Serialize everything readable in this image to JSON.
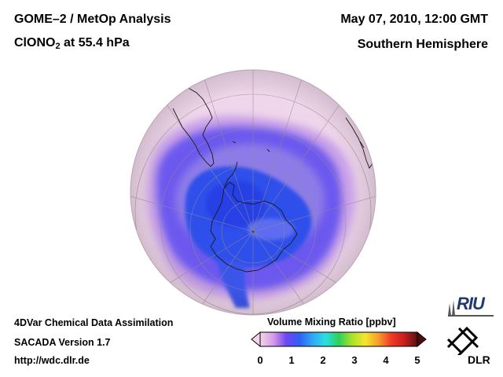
{
  "header": {
    "title_main": "GOME–2 / MetOp Analysis",
    "species": "ClONO",
    "species_sub": "2",
    "level": "at 55.4 hPa",
    "datetime": "May 07, 2010, 12:00 GMT",
    "region": "Southern Hemisphere"
  },
  "footer": {
    "line1": "4DVar Chemical Data Assimilation",
    "line2": "SACADA Version 1.7",
    "line3": "http://wdc.dlr.de"
  },
  "colorbar": {
    "label": "Volume Mixing Ratio [ppbv]",
    "ticks": [
      "0",
      "1",
      "2",
      "3",
      "4",
      "5"
    ],
    "min": 0,
    "max": 5,
    "colors": [
      "#f2d6ee",
      "#d79be6",
      "#6e46f2",
      "#2f5ff5",
      "#2fa8f7",
      "#2ae0e0",
      "#2fcf5a",
      "#a8e02a",
      "#f5e62a",
      "#f5a02a",
      "#ef3a2a",
      "#c81e1e",
      "#5a1010"
    ]
  },
  "logos": {
    "riu": "RIU",
    "dlr": "DLR"
  },
  "map": {
    "projection": "orthographic, south pole",
    "background_color": "#efd6ea",
    "low_color": "#2f4fea",
    "high_band_color": "#8e72e6"
  }
}
